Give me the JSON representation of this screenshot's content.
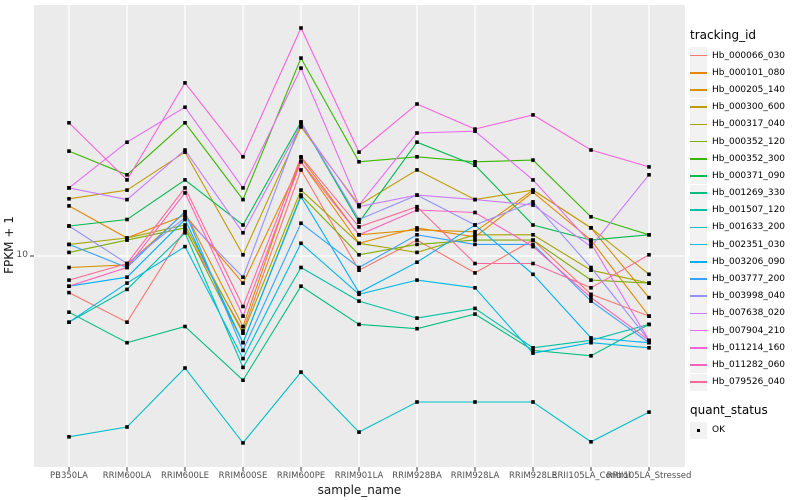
{
  "legend": {
    "tracking_title": "tracking_id",
    "quant_title": "quant_status",
    "quant_items": [
      {
        "label": "OK",
        "marker": "filled-black-square"
      }
    ]
  },
  "chart_data": {
    "type": "line",
    "title": "",
    "xlabel": "sample_name",
    "ylabel": "FPKM + 1",
    "y_scale": "log10",
    "ylim": [
      2.0,
      70
    ],
    "y_ticks": [
      {
        "value": 10,
        "label": "10"
      }
    ],
    "grid": "white gridlines on gray panel (ggplot2 style)",
    "legend_position": "right",
    "points": {
      "marker": "filled-square",
      "color": "#000000",
      "label": "OK"
    },
    "colors": {
      "panel_bg": "#EBEBEB",
      "grid": "#FFFFFF",
      "tick": "#333333",
      "axis_text": "#4D4D4D",
      "key_bg": "#F2F2F2"
    },
    "x_categories": [
      "PB350LA",
      "RRIM600LA",
      "RRIM600LE",
      "RRIM600SE",
      "RRIM600PE",
      "RRIM901LA",
      "RRIM928BA",
      "RRIM928LA",
      "RRIM928LE",
      "RRII105LA_Control",
      "RRII105LA_Stressed"
    ],
    "series": [
      {
        "name": "Hb_000066_030",
        "color": "#F8766D",
        "values": [
          7.4,
          5.8,
          12.4,
          5.4,
          20.3,
          8.9,
          11.4,
          8.7,
          11.4,
          7.3,
          6.1
        ]
      },
      {
        "name": "Hb_000101_080",
        "color": "#E58700",
        "values": [
          15.1,
          11.6,
          14.0,
          8.0,
          21.7,
          11.1,
          12.6,
          11.7,
          16.9,
          11.4,
          6.1
        ]
      },
      {
        "name": "Hb_000205_140",
        "color": "#D89000",
        "values": [
          9.1,
          9.3,
          14.3,
          5.6,
          22.4,
          11.9,
          12.4,
          12.2,
          17.2,
          12.6,
          7.1
        ]
      },
      {
        "name": "Hb_000300_600",
        "color": "#C09B00",
        "values": [
          16.0,
          17.2,
          23.5,
          10.1,
          28.9,
          15.2,
          20.3,
          15.9,
          17.2,
          12.6,
          8.6
        ]
      },
      {
        "name": "Hb_000317_040",
        "color": "#A3A500",
        "values": [
          11.0,
          11.6,
          12.9,
          5.3,
          17.2,
          11.1,
          10.3,
          11.9,
          11.9,
          8.9,
          8.0
        ]
      },
      {
        "name": "Hb_000352_120",
        "color": "#7CAE00",
        "values": [
          10.3,
          11.4,
          12.6,
          4.9,
          16.5,
          10.1,
          11.0,
          11.4,
          11.4,
          8.2,
          8.0
        ]
      },
      {
        "name": "Hb_000352_300",
        "color": "#39B600",
        "values": [
          23.7,
          19.5,
          29.9,
          15.9,
          50.9,
          21.7,
          22.6,
          21.7,
          22.0,
          13.8,
          11.9
        ]
      },
      {
        "name": "Hb_000371_090",
        "color": "#00BB4E",
        "values": [
          12.8,
          13.5,
          18.7,
          12.9,
          30.1,
          13.2,
          25.5,
          21.1,
          12.9,
          11.4,
          11.9
        ]
      },
      {
        "name": "Hb_001269_330",
        "color": "#00BF7D",
        "values": [
          6.3,
          4.9,
          5.6,
          3.6,
          7.8,
          5.7,
          5.5,
          6.2,
          4.6,
          4.4,
          5.7
        ]
      },
      {
        "name": "Hb_001507_120",
        "color": "#00C1A3",
        "values": [
          5.8,
          7.6,
          12.1,
          4.0,
          9.1,
          6.9,
          6.0,
          6.5,
          4.7,
          5.0,
          5.7
        ]
      },
      {
        "name": "Hb_001633_200",
        "color": "#00BFC4",
        "values": [
          2.26,
          2.45,
          3.98,
          2.15,
          3.85,
          2.35,
          3.01,
          3.01,
          3.01,
          2.17,
          2.77
        ]
      },
      {
        "name": "Hb_002351_030",
        "color": "#00BAE0",
        "values": [
          5.8,
          8.0,
          10.8,
          4.3,
          11.1,
          7.3,
          8.2,
          7.7,
          4.5,
          4.9,
          4.7
        ]
      },
      {
        "name": "Hb_003206_090",
        "color": "#00B0F6",
        "values": [
          7.8,
          8.4,
          13.5,
          4.9,
          16.3,
          7.4,
          9.5,
          12.9,
          8.6,
          5.1,
          4.9
        ]
      },
      {
        "name": "Hb_003777_200",
        "color": "#35A2FF",
        "values": [
          11.0,
          9.1,
          14.4,
          4.6,
          13.1,
          9.1,
          11.9,
          11.0,
          11.0,
          6.9,
          4.9
        ]
      },
      {
        "name": "Hb_003998_040",
        "color": "#9590FF",
        "values": [
          12.8,
          9.4,
          13.7,
          8.4,
          30.1,
          13.5,
          16.5,
          12.9,
          15.6,
          9.1,
          5.0
        ]
      },
      {
        "name": "Hb_007638_020",
        "color": "#C77CFF",
        "values": [
          17.5,
          15.9,
          23.9,
          12.1,
          29.4,
          15.0,
          16.5,
          15.9,
          15.2,
          10.8,
          19.5
        ]
      },
      {
        "name": "Hb_007904_210",
        "color": "#E76BF3",
        "values": [
          17.5,
          25.5,
          34.0,
          17.5,
          46.9,
          15.2,
          27.5,
          27.9,
          18.7,
          11.1,
          5.0
        ]
      },
      {
        "name": "Hb_011214_160",
        "color": "#FA62DB",
        "values": [
          29.9,
          18.7,
          41.5,
          22.6,
          65.2,
          23.5,
          34.9,
          28.4,
          31.9,
          23.9,
          20.8
        ]
      },
      {
        "name": "Hb_011282_060",
        "color": "#FF62BC",
        "values": [
          7.8,
          9.1,
          16.8,
          6.1,
          21.7,
          11.9,
          14.6,
          14.3,
          10.8,
          7.1,
          5.0
        ]
      },
      {
        "name": "Hb_079526_040",
        "color": "#FF6A98",
        "values": [
          8.2,
          9.4,
          17.5,
          6.6,
          22.6,
          12.7,
          15.0,
          9.4,
          9.4,
          7.7,
          10.1
        ]
      }
    ]
  }
}
